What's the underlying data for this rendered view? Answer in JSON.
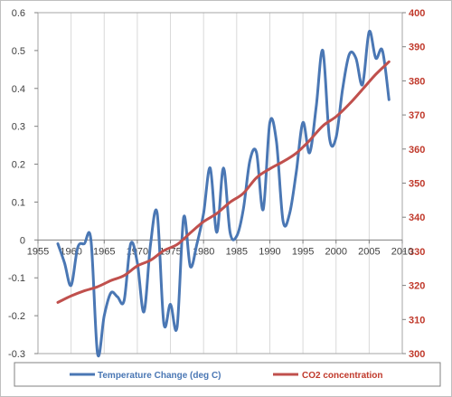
{
  "chart_data": {
    "type": "line",
    "title": "",
    "xlabel": "",
    "ylabel_left": "",
    "ylabel_right": "",
    "xlim": [
      1955,
      2010
    ],
    "x_ticks": [
      "1955",
      "1960",
      "1965",
      "1970",
      "1975",
      "1980",
      "1985",
      "1990",
      "1995",
      "2000",
      "2005",
      "2010"
    ],
    "ylim_left": [
      -0.3,
      0.6
    ],
    "y_ticks_left": [
      "-0.3",
      "-0.2",
      "-0.1",
      "0",
      "0.1",
      "0.2",
      "0.3",
      "0.4",
      "0.5",
      "0.6"
    ],
    "ylim_right": [
      300,
      400
    ],
    "y_ticks_right": [
      "300",
      "310",
      "320",
      "330",
      "340",
      "350",
      "360",
      "370",
      "380",
      "390",
      "400"
    ],
    "grid": "vertical",
    "legend": "bottom",
    "series": [
      {
        "name": "Temperature Change (deg C)",
        "axis": "left",
        "color": "#4a77b4",
        "x": [
          1958,
          1959,
          1960,
          1961,
          1962,
          1963,
          1964,
          1965,
          1966,
          1967,
          1968,
          1969,
          1970,
          1971,
          1972,
          1973,
          1974,
          1975,
          1976,
          1977,
          1978,
          1979,
          1980,
          1981,
          1982,
          1983,
          1984,
          1985,
          1986,
          1987,
          1988,
          1989,
          1990,
          1991,
          1992,
          1993,
          1994,
          1995,
          1996,
          1997,
          1998,
          1999,
          2000,
          2001,
          2002,
          2003,
          2004,
          2005,
          2006,
          2007,
          2008
        ],
        "y": [
          -0.01,
          -0.06,
          -0.12,
          -0.02,
          -0.01,
          0.0,
          -0.3,
          -0.2,
          -0.14,
          -0.15,
          -0.16,
          -0.01,
          -0.06,
          -0.19,
          -0.01,
          0.07,
          -0.22,
          -0.17,
          -0.23,
          0.06,
          -0.07,
          -0.01,
          0.07,
          0.19,
          0.02,
          0.19,
          0.02,
          0.01,
          0.08,
          0.21,
          0.23,
          0.08,
          0.31,
          0.26,
          0.05,
          0.07,
          0.18,
          0.31,
          0.23,
          0.35,
          0.5,
          0.27,
          0.27,
          0.4,
          0.49,
          0.48,
          0.41,
          0.55,
          0.48,
          0.5,
          0.37
        ]
      },
      {
        "name": "CO2 concentration",
        "axis": "right",
        "color": "#c0504d",
        "x": [
          1958,
          1960,
          1962,
          1964,
          1966,
          1968,
          1970,
          1972,
          1974,
          1976,
          1978,
          1980,
          1982,
          1984,
          1986,
          1988,
          1990,
          1992,
          1994,
          1996,
          1998,
          2000,
          2002,
          2004,
          2006,
          2008
        ],
        "y": [
          315,
          316.9,
          318.4,
          319.6,
          321.4,
          322.9,
          325.7,
          327.4,
          330.2,
          332.0,
          335.4,
          338.7,
          341.1,
          344.4,
          347.0,
          351.6,
          354.2,
          356.3,
          358.8,
          362.5,
          366.8,
          369.5,
          373.2,
          377.5,
          381.9,
          385.6
        ]
      }
    ]
  }
}
